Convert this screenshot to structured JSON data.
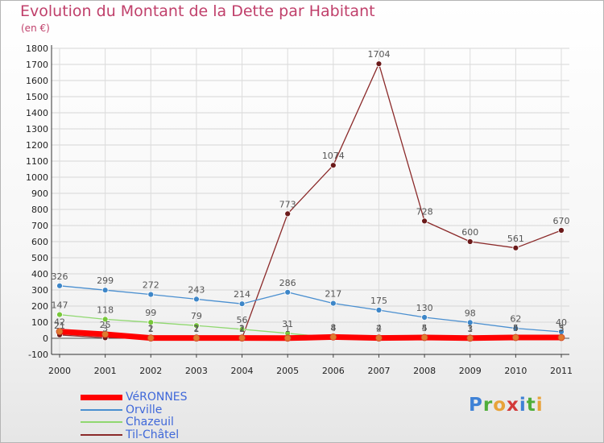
{
  "title": "Evolution du Montant de la Dette par Habitant",
  "subtitle": "(en €)",
  "logo": {
    "letters": [
      {
        "char": "P",
        "color": "#3f82d6"
      },
      {
        "char": "r",
        "color": "#4fae3a"
      },
      {
        "char": "o",
        "color": "#e8a33a"
      },
      {
        "char": "x",
        "color": "#d33a3a"
      },
      {
        "char": "i",
        "color": "#3f82d6"
      },
      {
        "char": "t",
        "color": "#4fae3a"
      },
      {
        "char": "i",
        "color": "#e8a33a"
      }
    ]
  },
  "chart_data": {
    "type": "line",
    "title": "Evolution du Montant de la Dette par Habitant",
    "subtitle": "(en €)",
    "x": [
      "2000",
      "2001",
      "2002",
      "2003",
      "2004",
      "2005",
      "2006",
      "2007",
      "2008",
      "2009",
      "2010",
      "2011"
    ],
    "ylim": [
      -100,
      1800
    ],
    "yticks": [
      -100,
      0,
      100,
      200,
      300,
      400,
      500,
      600,
      700,
      800,
      900,
      1000,
      1100,
      1200,
      1300,
      1400,
      1500,
      1600,
      1700,
      1800
    ],
    "grid": true,
    "legend_position": "bottom-left",
    "series": [
      {
        "name": "VéRONNES",
        "color": "#ff0000",
        "marker": "#e07a30",
        "values": [
          42,
          25,
          2,
          2,
          2,
          1,
          8,
          2,
          5,
          1,
          5,
          5
        ]
      },
      {
        "name": "Orville",
        "color": "#4a8fd0",
        "marker": "#3d86c8",
        "values": [
          326,
          299,
          272,
          243,
          214,
          286,
          217,
          175,
          130,
          98,
          62,
          40
        ]
      },
      {
        "name": "Chazeuil",
        "color": "#90d870",
        "marker": "#78c83a",
        "values": [
          147,
          118,
          99,
          79,
          56,
          31,
          4,
          4,
          4,
          3,
          4,
          3
        ]
      },
      {
        "name": "Til-Châtel",
        "color": "#8b2a2a",
        "marker": "#6b1a1a",
        "values": [
          21,
          3,
          1,
          1,
          1,
          773,
          1074,
          1704,
          728,
          600,
          561,
          670
        ]
      }
    ]
  }
}
